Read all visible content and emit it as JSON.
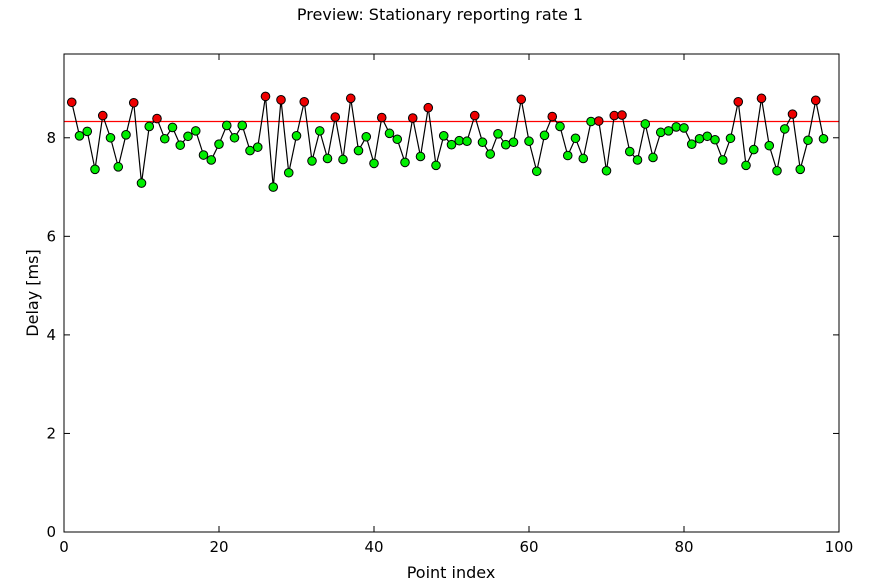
{
  "chart_data": {
    "type": "scatter",
    "title": "Preview: Stationary reporting rate 1",
    "xlabel": "Point index",
    "ylabel": "Delay [ms]",
    "xlim": [
      0,
      100
    ],
    "ylim": [
      0,
      9.7
    ],
    "x_ticks": [
      0,
      20,
      40,
      60,
      80,
      100
    ],
    "y_ticks": [
      0,
      2,
      4,
      6,
      8
    ],
    "threshold": 8.33,
    "colors": {
      "line": "#000000",
      "threshold": "#ff0000",
      "below": "#00ee00",
      "above": "#ee0000",
      "marker_edge": "#000000",
      "frame": "#000000"
    },
    "grid": false,
    "legend": "none",
    "x": [
      1,
      2,
      3,
      4,
      5,
      6,
      7,
      8,
      9,
      10,
      11,
      12,
      13,
      14,
      15,
      16,
      17,
      18,
      19,
      20,
      21,
      22,
      23,
      24,
      25,
      26,
      27,
      28,
      29,
      30,
      31,
      32,
      33,
      34,
      35,
      36,
      37,
      38,
      39,
      40,
      41,
      42,
      43,
      44,
      45,
      46,
      47,
      48,
      49,
      50,
      51,
      52,
      53,
      54,
      55,
      56,
      57,
      58,
      59,
      60,
      61,
      62,
      63,
      64,
      65,
      66,
      67,
      68,
      69,
      70,
      71,
      72,
      73,
      74,
      75,
      76,
      77,
      78,
      79,
      80,
      81,
      82,
      83,
      84,
      85,
      86,
      87,
      88,
      89,
      90,
      91,
      92,
      93,
      94,
      95,
      96,
      97,
      98
    ],
    "y": [
      8.72,
      8.04,
      8.13,
      7.36,
      8.45,
      8.0,
      7.41,
      8.06,
      8.71,
      7.08,
      8.23,
      8.39,
      7.98,
      8.21,
      7.85,
      8.03,
      8.14,
      7.65,
      7.55,
      7.87,
      8.25,
      8.0,
      8.25,
      7.74,
      7.81,
      8.84,
      7.0,
      8.77,
      7.29,
      8.04,
      8.73,
      7.53,
      8.14,
      7.58,
      8.42,
      7.56,
      8.8,
      7.74,
      8.02,
      7.48,
      8.41,
      8.09,
      7.97,
      7.5,
      8.4,
      7.62,
      8.61,
      7.44,
      8.04,
      7.86,
      7.94,
      7.93,
      8.45,
      7.91,
      7.67,
      8.08,
      7.86,
      7.91,
      8.78,
      7.93,
      7.32,
      8.05,
      8.43,
      8.23,
      7.64,
      7.99,
      7.58,
      8.33,
      8.34,
      7.33,
      8.45,
      8.46,
      7.72,
      7.55,
      8.28,
      7.6,
      8.11,
      8.14,
      8.22,
      8.2,
      7.87,
      7.98,
      8.03,
      7.96,
      7.55,
      7.99,
      8.73,
      7.44,
      7.76,
      8.8,
      7.84,
      7.33,
      8.18,
      8.48,
      7.36,
      7.95,
      8.76,
      7.98
    ]
  }
}
